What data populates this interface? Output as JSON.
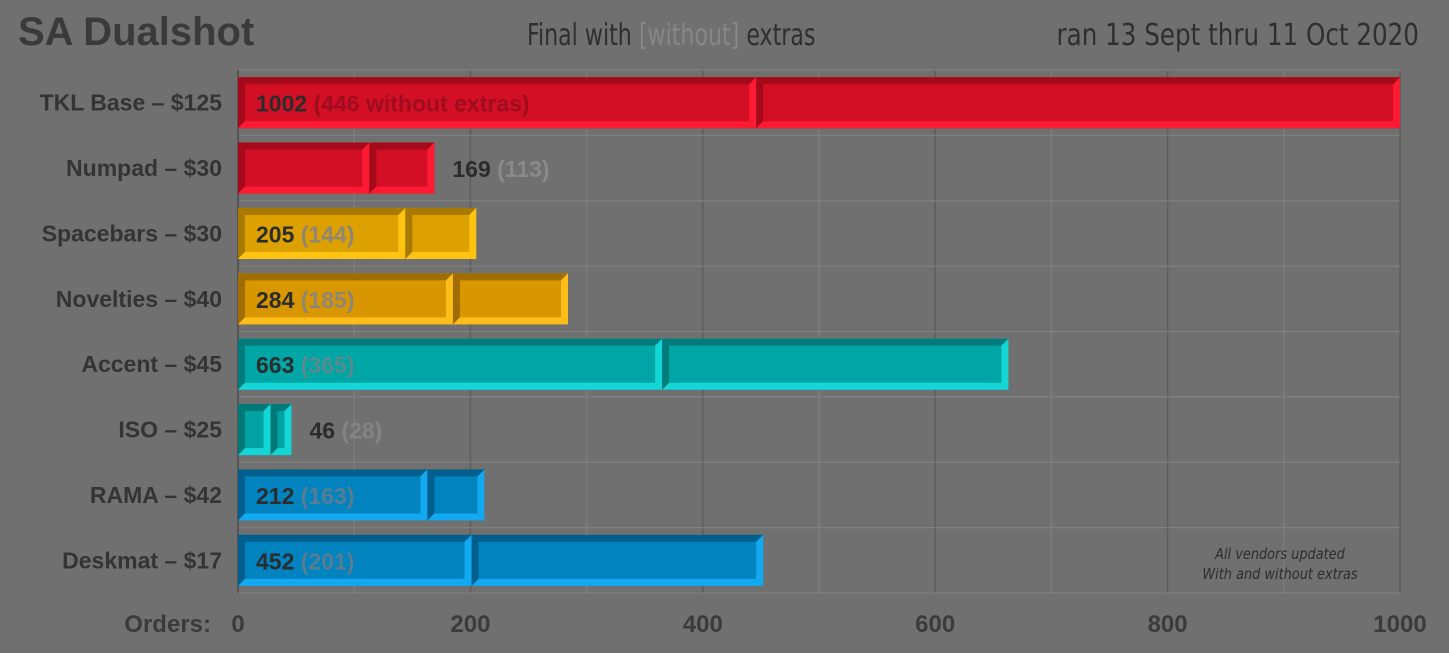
{
  "header": {
    "title": "SA Dualshot",
    "subtitle_prefix": "Final with ",
    "subtitle_muted": "[without]",
    "subtitle_suffix": " extras",
    "date_range": "ran 13 Sept thru 11 Oct 2020"
  },
  "note": {
    "line1": "All vendors updated",
    "line2": "With and without extras"
  },
  "chart_data": {
    "type": "bar",
    "orientation": "horizontal",
    "title": "SA Dualshot",
    "xlabel": "Orders:",
    "xlim": [
      0,
      1000
    ],
    "xticks": [
      0,
      200,
      400,
      600,
      800,
      1000
    ],
    "grid": true,
    "categories": [
      "TKL Base – $125",
      "Numpad – $30",
      "Spacebars – $30",
      "Novelties – $40",
      "Accent – $45",
      "ISO – $25",
      "RAMA – $42",
      "Deskmat – $17"
    ],
    "series": [
      {
        "name": "with extras",
        "values": [
          1002,
          169,
          205,
          284,
          663,
          46,
          212,
          452
        ]
      },
      {
        "name": "without extras",
        "values": [
          446,
          113,
          144,
          185,
          365,
          28,
          163,
          201
        ]
      }
    ],
    "value_labels": [
      "1002",
      "169",
      "205",
      "284",
      "663",
      "46",
      "212",
      "452"
    ],
    "secondary_labels": [
      "(446 without extras)",
      "(113)",
      "(144)",
      "(185)",
      "(365)",
      "(28)",
      "(163)",
      "(201)"
    ],
    "label_outside": [
      false,
      true,
      false,
      false,
      false,
      true,
      false,
      false
    ],
    "colors": [
      {
        "fill": "#d30f25",
        "light": "#ff1a33",
        "dark": "#a50a1b",
        "muted": "#9d0d1e"
      },
      {
        "fill": "#d30f25",
        "light": "#ff1a33",
        "dark": "#a50a1b",
        "muted": "#8a8a8a"
      },
      {
        "fill": "#dca100",
        "light": "#ffc410",
        "dark": "#a87b00",
        "muted": "#8e8676"
      },
      {
        "fill": "#d89600",
        "light": "#ffbd1a",
        "dark": "#a06e00",
        "muted": "#8e8676"
      },
      {
        "fill": "#00a6a6",
        "light": "#14d6d6",
        "dark": "#007c7c",
        "muted": "#5a8a8c"
      },
      {
        "fill": "#00a2a2",
        "light": "#14d6d6",
        "dark": "#007878",
        "muted": "#848484"
      },
      {
        "fill": "#0083bf",
        "light": "#12a9f0",
        "dark": "#005f8c",
        "muted": "#5a7c92"
      },
      {
        "fill": "#0083bf",
        "light": "#12a9f0",
        "dark": "#005f8c",
        "muted": "#5a7c92"
      }
    ]
  }
}
